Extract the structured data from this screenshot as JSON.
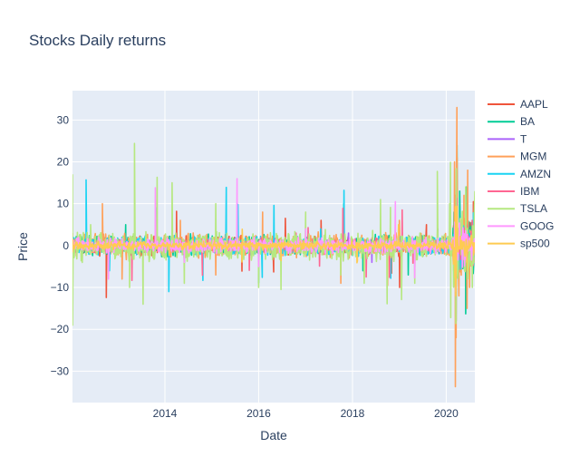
{
  "chart_data": {
    "type": "line",
    "title": "Stocks Daily returns",
    "xlabel": "Date",
    "ylabel": "Price",
    "x_range": [
      "2012-01-12",
      "2020-08-11"
    ],
    "ylim": [
      -37.5,
      37
    ],
    "x_ticks": [
      {
        "value": "2014-01-01",
        "label": "2014"
      },
      {
        "value": "2016-01-01",
        "label": "2016"
      },
      {
        "value": "2018-01-01",
        "label": "2018"
      },
      {
        "value": "2020-01-01",
        "label": "2020"
      }
    ],
    "y_ticks": [
      {
        "value": 30,
        "label": "30"
      },
      {
        "value": 20,
        "label": "20"
      },
      {
        "value": 10,
        "label": "10"
      },
      {
        "value": 0,
        "label": "0"
      },
      {
        "value": -10,
        "label": "−10"
      },
      {
        "value": -20,
        "label": "−20"
      },
      {
        "value": -30,
        "label": "−30"
      }
    ],
    "grid": true,
    "legend_position": "right",
    "plot_background": "#e5ecf6",
    "series": [
      {
        "name": "AAPL",
        "color": "#ef553b",
        "points": [
          [
            "2012-01-12",
            0
          ],
          [
            "2012-10-01",
            -12.4
          ],
          [
            "2013-06-01",
            -2
          ],
          [
            "2014-04-01",
            8.2
          ],
          [
            "2015-08-24",
            -6.1
          ],
          [
            "2016-04-27",
            -6.3
          ],
          [
            "2016-07-27",
            6.5
          ],
          [
            "2017-05-01",
            6
          ],
          [
            "2018-11-01",
            -6.6
          ],
          [
            "2019-01-03",
            -10
          ],
          [
            "2019-07-31",
            5
          ],
          [
            "2020-03-13",
            12
          ],
          [
            "2020-03-16",
            -12.9
          ],
          [
            "2020-03-24",
            10
          ],
          [
            "2020-07-31",
            10.5
          ],
          [
            "2020-08-11",
            1
          ]
        ]
      },
      {
        "name": "BA",
        "color": "#00cc96",
        "points": [
          [
            "2012-01-12",
            0
          ],
          [
            "2013-03-01",
            5
          ],
          [
            "2014-06-01",
            -4
          ],
          [
            "2016-01-01",
            -8.9
          ],
          [
            "2017-10-25",
            10
          ],
          [
            "2018-03-23",
            -6
          ],
          [
            "2019-03-11",
            -7
          ],
          [
            "2020-03-02",
            8
          ],
          [
            "2020-03-16",
            -17
          ],
          [
            "2020-03-18",
            -18
          ],
          [
            "2020-03-24",
            20.8
          ],
          [
            "2020-03-25",
            24
          ],
          [
            "2020-04-15",
            13
          ],
          [
            "2020-06-01",
            -16.3
          ],
          [
            "2020-06-05",
            14
          ],
          [
            "2020-08-11",
            10
          ]
        ]
      },
      {
        "name": "T",
        "color": "#ab63fa",
        "points": [
          [
            "2012-01-12",
            0
          ],
          [
            "2014-01-01",
            2
          ],
          [
            "2016-01-01",
            -2
          ],
          [
            "2017-12-01",
            3
          ],
          [
            "2018-06-01",
            -4
          ],
          [
            "2019-10-28",
            4
          ],
          [
            "2020-03-16",
            -8
          ],
          [
            "2020-03-24",
            9
          ],
          [
            "2020-06-01",
            -3
          ],
          [
            "2020-08-11",
            0
          ]
        ]
      },
      {
        "name": "MGM",
        "color": "#ffa15a",
        "points": [
          [
            "2012-01-12",
            3
          ],
          [
            "2012-09-01",
            10
          ],
          [
            "2013-02-01",
            -8
          ],
          [
            "2014-05-01",
            6
          ],
          [
            "2015-02-01",
            -7
          ],
          [
            "2016-02-01",
            8
          ],
          [
            "2017-10-02",
            -9
          ],
          [
            "2018-10-01",
            -9.5
          ],
          [
            "2019-01-01",
            6
          ],
          [
            "2020-02-27",
            -6
          ],
          [
            "2020-03-06",
            20
          ],
          [
            "2020-03-12",
            -33.7
          ],
          [
            "2020-03-18",
            -22
          ],
          [
            "2020-03-24",
            33
          ],
          [
            "2020-03-26",
            21
          ],
          [
            "2020-04-09",
            -12
          ],
          [
            "2020-05-18",
            12
          ],
          [
            "2020-06-11",
            -15
          ],
          [
            "2020-06-16",
            18
          ],
          [
            "2020-07-01",
            -10
          ],
          [
            "2020-08-11",
            6
          ]
        ]
      },
      {
        "name": "AMZN",
        "color": "#19d3f3",
        "points": [
          [
            "2012-01-12",
            0
          ],
          [
            "2012-04-27",
            15.7
          ],
          [
            "2012-10-26",
            -6
          ],
          [
            "2013-10-25",
            9
          ],
          [
            "2014-01-31",
            -11
          ],
          [
            "2014-10-24",
            -8.3
          ],
          [
            "2015-04-24",
            13.9
          ],
          [
            "2015-07-24",
            9.8
          ],
          [
            "2016-01-29",
            -7.6
          ],
          [
            "2016-04-29",
            9.6
          ],
          [
            "2017-04-28",
            4
          ],
          [
            "2017-10-27",
            13.2
          ],
          [
            "2018-10-26",
            -7.8
          ],
          [
            "2019-10-25",
            -1.1
          ],
          [
            "2020-07-31",
            7.8
          ],
          [
            "2020-08-11",
            0
          ]
        ]
      },
      {
        "name": "IBM",
        "color": "#ff6692",
        "points": [
          [
            "2012-01-12",
            0
          ],
          [
            "2013-04-19",
            -8.3
          ],
          [
            "2014-10-20",
            -7.1
          ],
          [
            "2015-10-20",
            -5.9
          ],
          [
            "2016-10-18",
            3
          ],
          [
            "2017-01-20",
            4.3
          ],
          [
            "2017-04-19",
            -4.9
          ],
          [
            "2017-10-18",
            8.9
          ],
          [
            "2018-04-18",
            -7.5
          ],
          [
            "2018-10-17",
            -7.6
          ],
          [
            "2019-01-23",
            8.5
          ],
          [
            "2019-04-17",
            -4.2
          ],
          [
            "2020-03-16",
            -13
          ],
          [
            "2020-03-24",
            11.3
          ],
          [
            "2020-04-21",
            -3.3
          ],
          [
            "2020-07-21",
            6
          ],
          [
            "2020-08-11",
            0
          ]
        ]
      },
      {
        "name": "TSLA",
        "color": "#b6e880",
        "points": [
          [
            "2012-01-12",
            17
          ],
          [
            "2012-01-13",
            -19
          ],
          [
            "2012-06-01",
            5
          ],
          [
            "2013-04-01",
            -10
          ],
          [
            "2013-05-09",
            24.4
          ],
          [
            "2013-07-15",
            -14
          ],
          [
            "2013-11-01",
            16.3
          ],
          [
            "2014-02-26",
            15
          ],
          [
            "2014-06-01",
            -9
          ],
          [
            "2015-02-01",
            10
          ],
          [
            "2016-01-01",
            -10
          ],
          [
            "2016-06-23",
            -10.5
          ],
          [
            "2017-01-01",
            8
          ],
          [
            "2017-10-01",
            -7
          ],
          [
            "2018-04-02",
            -9
          ],
          [
            "2018-08-07",
            11
          ],
          [
            "2018-09-28",
            -13.9
          ],
          [
            "2018-10-24",
            9.1
          ],
          [
            "2019-01-18",
            -12.9
          ],
          [
            "2019-05-01",
            -9
          ],
          [
            "2019-10-24",
            17.7
          ],
          [
            "2020-01-28",
            10
          ],
          [
            "2020-02-03",
            19.9
          ],
          [
            "2020-02-04",
            13.7
          ],
          [
            "2020-02-05",
            -17.2
          ],
          [
            "2020-03-16",
            -18.6
          ],
          [
            "2020-03-19",
            18.4
          ],
          [
            "2020-06-01",
            14
          ],
          [
            "2020-07-22",
            -10
          ],
          [
            "2020-08-11",
            13
          ]
        ]
      },
      {
        "name": "GOOG",
        "color": "#ff97ff",
        "points": [
          [
            "2012-01-12",
            0
          ],
          [
            "2012-10-18",
            -8
          ],
          [
            "2013-10-18",
            13.8
          ],
          [
            "2014-06-01",
            -4
          ],
          [
            "2015-07-17",
            16
          ],
          [
            "2016-01-01",
            -5
          ],
          [
            "2017-01-01",
            4
          ],
          [
            "2018-12-01",
            10.5
          ],
          [
            "2019-04-30",
            -7.7
          ],
          [
            "2020-03-16",
            -11
          ],
          [
            "2020-03-24",
            9
          ],
          [
            "2020-08-11",
            0
          ]
        ]
      },
      {
        "name": "sp500",
        "color": "#fecb52",
        "points": [
          [
            "2012-01-12",
            0
          ],
          [
            "2012-01-13",
            -1.5
          ],
          [
            "2012-01-14",
            1.5
          ],
          [
            "2012-01-15",
            -1
          ],
          [
            "2012-01-16",
            1
          ],
          [
            "2014-02-03",
            -2.3
          ],
          [
            "2015-08-24",
            -3.9
          ],
          [
            "2015-08-26",
            3.9
          ],
          [
            "2016-06-24",
            -3.6
          ],
          [
            "2018-02-05",
            -4.1
          ],
          [
            "2018-02-08",
            -3.7
          ],
          [
            "2018-12-26",
            5
          ],
          [
            "2020-02-27",
            -4.4
          ],
          [
            "2020-03-09",
            -7.6
          ],
          [
            "2020-03-12",
            -9.5
          ],
          [
            "2020-03-13",
            9.3
          ],
          [
            "2020-03-16",
            -12
          ],
          [
            "2020-03-24",
            9.4
          ],
          [
            "2020-03-26",
            6.2
          ],
          [
            "2020-06-11",
            -5.9
          ],
          [
            "2020-08-11",
            0.5
          ]
        ]
      }
    ]
  }
}
